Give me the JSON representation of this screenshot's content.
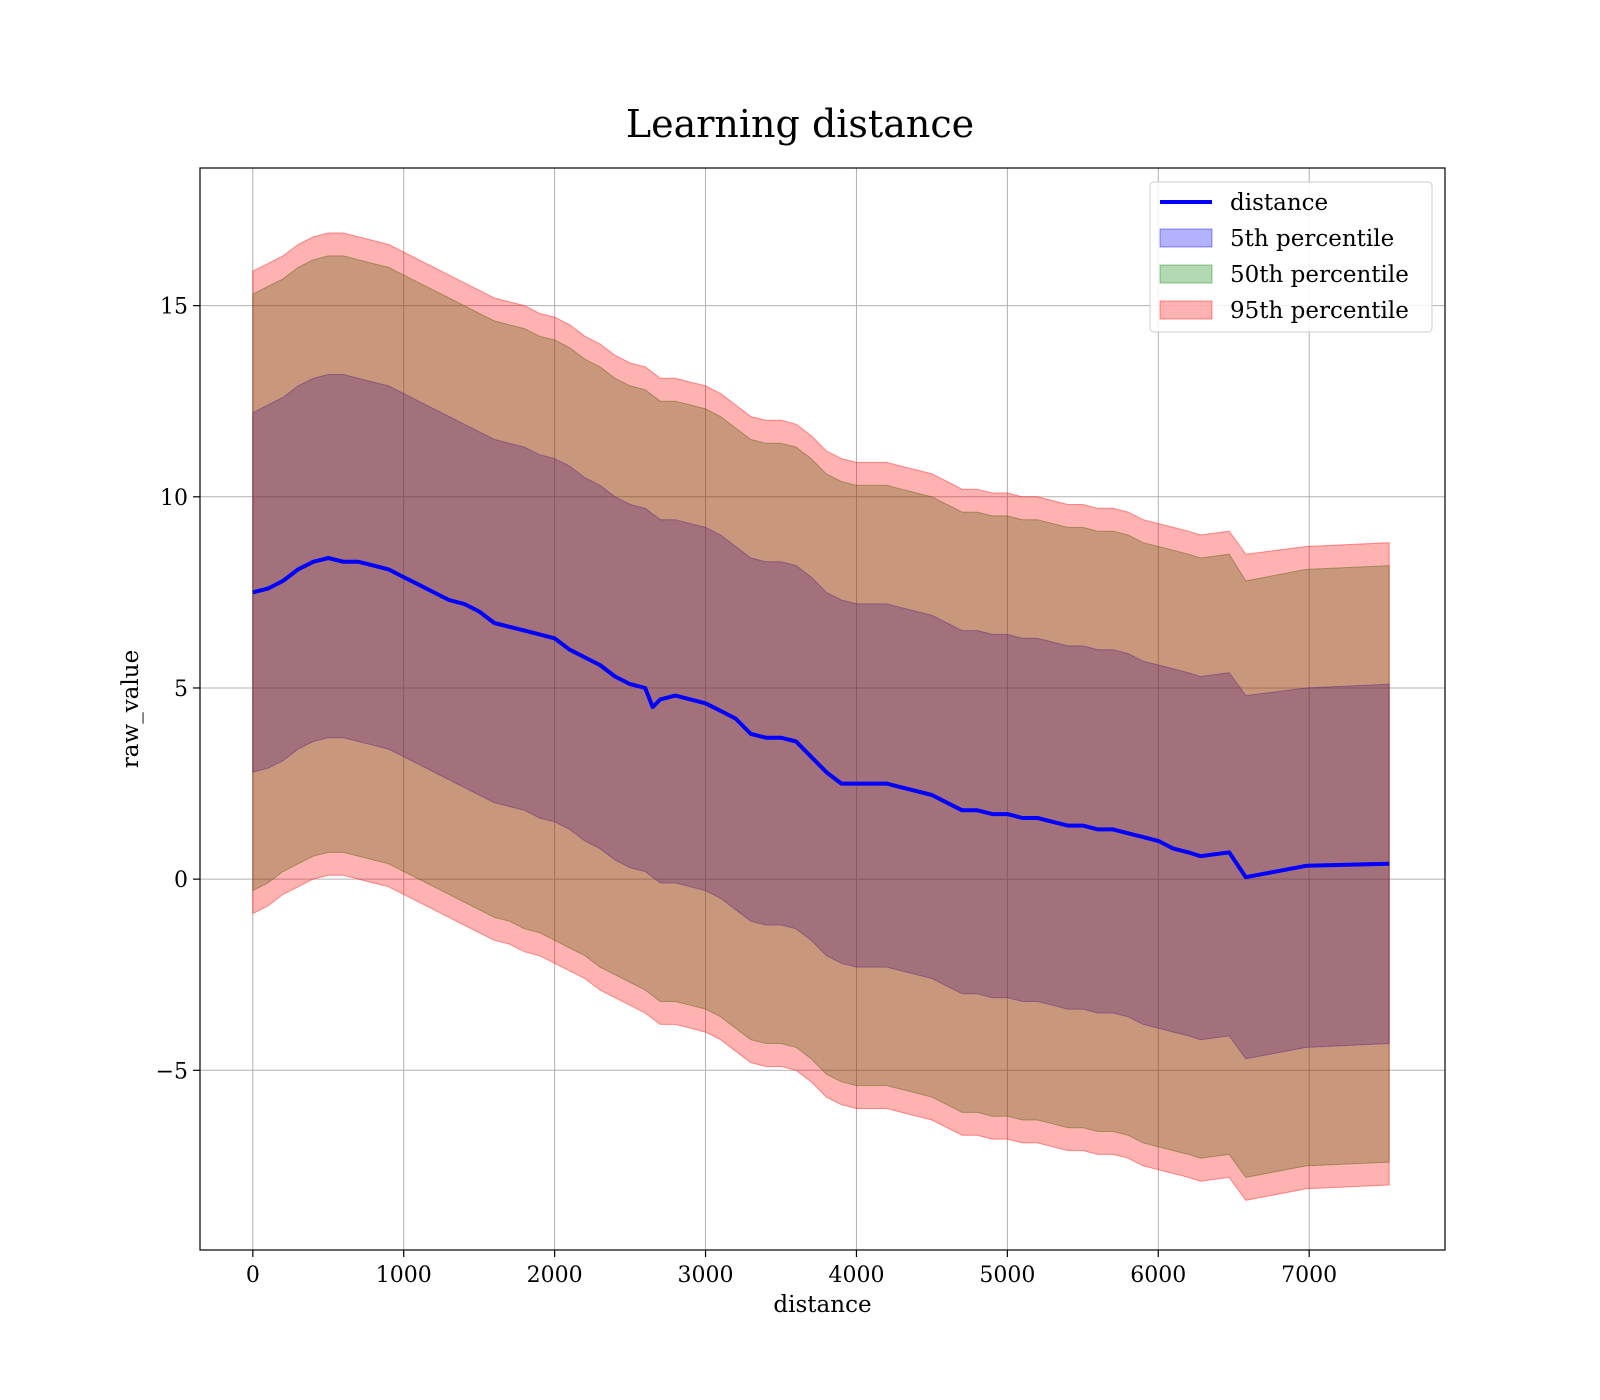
{
  "chart_data": {
    "type": "line",
    "title": "Learning distance",
    "xlabel": "distance",
    "ylabel": "raw_value",
    "xlim": [
      -350,
      7900
    ],
    "ylim": [
      -9.7,
      18.6
    ],
    "x_ticks": [
      0,
      1000,
      2000,
      3000,
      4000,
      5000,
      6000,
      7000
    ],
    "y_ticks": [
      -5,
      0,
      5,
      10,
      15
    ],
    "y_tick_labels": [
      "−5",
      "0",
      "5",
      "10",
      "15"
    ],
    "grid": true,
    "legend_position": "top-right",
    "line": {
      "name": "distance",
      "color": "#0000ff",
      "x": [
        0,
        100,
        200,
        300,
        400,
        500,
        600,
        700,
        800,
        900,
        1000,
        1100,
        1200,
        1300,
        1400,
        1500,
        1600,
        1700,
        1800,
        1900,
        2000,
        2100,
        2200,
        2300,
        2400,
        2500,
        2600,
        2650,
        2700,
        2800,
        2900,
        3000,
        3100,
        3200,
        3300,
        3400,
        3500,
        3600,
        3700,
        3800,
        3900,
        4000,
        4100,
        4200,
        4300,
        4400,
        4500,
        4600,
        4700,
        4800,
        4900,
        5000,
        5100,
        5200,
        5300,
        5400,
        5500,
        5600,
        5700,
        5800,
        5900,
        6000,
        6100,
        6200,
        6280,
        6470,
        6580,
        6980,
        7530
      ],
      "values": [
        7.5,
        7.6,
        7.8,
        8.1,
        8.3,
        8.4,
        8.3,
        8.3,
        8.2,
        8.1,
        7.9,
        7.7,
        7.5,
        7.3,
        7.2,
        7.0,
        6.7,
        6.6,
        6.5,
        6.4,
        6.3,
        6.0,
        5.8,
        5.6,
        5.3,
        5.1,
        5.0,
        4.5,
        4.7,
        4.8,
        4.7,
        4.6,
        4.4,
        4.2,
        3.8,
        3.7,
        3.7,
        3.6,
        3.2,
        2.8,
        2.5,
        2.5,
        2.5,
        2.5,
        2.4,
        2.3,
        2.2,
        2.0,
        1.8,
        1.8,
        1.7,
        1.7,
        1.6,
        1.6,
        1.5,
        1.4,
        1.4,
        1.3,
        1.3,
        1.2,
        1.1,
        1.0,
        0.8,
        0.7,
        0.6,
        0.7,
        0.05,
        0.35,
        0.4
      ]
    },
    "bands_x": [
      0,
      100,
      200,
      300,
      400,
      500,
      600,
      700,
      800,
      900,
      1000,
      1100,
      1200,
      1300,
      1400,
      1500,
      1600,
      1700,
      1800,
      1900,
      2000,
      2100,
      2200,
      2300,
      2400,
      2500,
      2600,
      2700,
      2800,
      2900,
      3000,
      3100,
      3200,
      3300,
      3400,
      3500,
      3600,
      3700,
      3800,
      3900,
      4000,
      4100,
      4200,
      4300,
      4400,
      4500,
      4600,
      4700,
      4800,
      4900,
      5000,
      5100,
      5200,
      5300,
      5400,
      5500,
      5600,
      5700,
      5800,
      5900,
      6000,
      6100,
      6200,
      6280,
      6470,
      6580,
      6980,
      7530
    ],
    "bands": [
      {
        "name": "5th percentile",
        "color": "#0000ff",
        "lower": [
          2.8,
          2.9,
          3.1,
          3.4,
          3.6,
          3.7,
          3.7,
          3.6,
          3.5,
          3.4,
          3.2,
          3.0,
          2.8,
          2.6,
          2.4,
          2.2,
          2.0,
          1.9,
          1.8,
          1.6,
          1.5,
          1.3,
          1.0,
          0.8,
          0.5,
          0.3,
          0.2,
          -0.1,
          -0.1,
          -0.2,
          -0.3,
          -0.5,
          -0.8,
          -1.1,
          -1.2,
          -1.2,
          -1.3,
          -1.6,
          -2.0,
          -2.2,
          -2.3,
          -2.3,
          -2.3,
          -2.4,
          -2.5,
          -2.6,
          -2.8,
          -3.0,
          -3.0,
          -3.1,
          -3.1,
          -3.2,
          -3.2,
          -3.3,
          -3.4,
          -3.4,
          -3.5,
          -3.5,
          -3.6,
          -3.8,
          -3.9,
          -4.0,
          -4.1,
          -4.2,
          -4.1,
          -4.7,
          -4.4,
          -4.3
        ],
        "upper": [
          12.2,
          12.4,
          12.6,
          12.9,
          13.1,
          13.2,
          13.2,
          13.1,
          13.0,
          12.9,
          12.7,
          12.5,
          12.3,
          12.1,
          11.9,
          11.7,
          11.5,
          11.4,
          11.3,
          11.1,
          11.0,
          10.8,
          10.5,
          10.3,
          10.0,
          9.8,
          9.7,
          9.4,
          9.4,
          9.3,
          9.2,
          9.0,
          8.7,
          8.4,
          8.3,
          8.3,
          8.2,
          7.9,
          7.5,
          7.3,
          7.2,
          7.2,
          7.2,
          7.1,
          7.0,
          6.9,
          6.7,
          6.5,
          6.5,
          6.4,
          6.4,
          6.3,
          6.3,
          6.2,
          6.1,
          6.1,
          6.0,
          6.0,
          5.9,
          5.7,
          5.6,
          5.5,
          5.4,
          5.3,
          5.4,
          4.8,
          5.0,
          5.1
        ]
      },
      {
        "name": "50th percentile",
        "color": "#008000",
        "lower": [
          -0.3,
          -0.1,
          0.2,
          0.4,
          0.6,
          0.7,
          0.7,
          0.6,
          0.5,
          0.4,
          0.2,
          0.0,
          -0.2,
          -0.4,
          -0.6,
          -0.8,
          -1.0,
          -1.1,
          -1.3,
          -1.4,
          -1.6,
          -1.8,
          -2.0,
          -2.3,
          -2.5,
          -2.7,
          -2.9,
          -3.2,
          -3.2,
          -3.3,
          -3.4,
          -3.6,
          -3.9,
          -4.2,
          -4.3,
          -4.3,
          -4.4,
          -4.7,
          -5.1,
          -5.3,
          -5.4,
          -5.4,
          -5.4,
          -5.5,
          -5.6,
          -5.7,
          -5.9,
          -6.1,
          -6.1,
          -6.2,
          -6.2,
          -6.3,
          -6.3,
          -6.4,
          -6.5,
          -6.5,
          -6.6,
          -6.6,
          -6.7,
          -6.9,
          -7.0,
          -7.1,
          -7.2,
          -7.3,
          -7.2,
          -7.8,
          -7.5,
          -7.4
        ],
        "upper": [
          15.3,
          15.5,
          15.7,
          16.0,
          16.2,
          16.3,
          16.3,
          16.2,
          16.1,
          16.0,
          15.8,
          15.6,
          15.4,
          15.2,
          15.0,
          14.8,
          14.6,
          14.5,
          14.4,
          14.2,
          14.1,
          13.9,
          13.6,
          13.4,
          13.1,
          12.9,
          12.8,
          12.5,
          12.5,
          12.4,
          12.3,
          12.1,
          11.8,
          11.5,
          11.4,
          11.4,
          11.3,
          11.0,
          10.6,
          10.4,
          10.3,
          10.3,
          10.3,
          10.2,
          10.1,
          10.0,
          9.8,
          9.6,
          9.6,
          9.5,
          9.5,
          9.4,
          9.4,
          9.3,
          9.2,
          9.2,
          9.1,
          9.1,
          9.0,
          8.8,
          8.7,
          8.6,
          8.5,
          8.4,
          8.5,
          7.8,
          8.1,
          8.2
        ]
      },
      {
        "name": "95th percentile",
        "color": "#ff0000",
        "lower": [
          -0.9,
          -0.7,
          -0.4,
          -0.2,
          0.0,
          0.1,
          0.1,
          0.0,
          -0.1,
          -0.2,
          -0.4,
          -0.6,
          -0.8,
          -1.0,
          -1.2,
          -1.4,
          -1.6,
          -1.7,
          -1.9,
          -2.0,
          -2.2,
          -2.4,
          -2.6,
          -2.9,
          -3.1,
          -3.3,
          -3.5,
          -3.8,
          -3.8,
          -3.9,
          -4.0,
          -4.2,
          -4.5,
          -4.8,
          -4.9,
          -4.9,
          -5.0,
          -5.3,
          -5.7,
          -5.9,
          -6.0,
          -6.0,
          -6.0,
          -6.1,
          -6.2,
          -6.3,
          -6.5,
          -6.7,
          -6.7,
          -6.8,
          -6.8,
          -6.9,
          -6.9,
          -7.0,
          -7.1,
          -7.1,
          -7.2,
          -7.2,
          -7.3,
          -7.5,
          -7.6,
          -7.7,
          -7.8,
          -7.9,
          -7.8,
          -8.4,
          -8.1,
          -8.0
        ],
        "upper": [
          15.9,
          16.1,
          16.3,
          16.6,
          16.8,
          16.9,
          16.9,
          16.8,
          16.7,
          16.6,
          16.4,
          16.2,
          16.0,
          15.8,
          15.6,
          15.4,
          15.2,
          15.1,
          15.0,
          14.8,
          14.7,
          14.5,
          14.2,
          14.0,
          13.7,
          13.5,
          13.4,
          13.1,
          13.1,
          13.0,
          12.9,
          12.7,
          12.4,
          12.1,
          12.0,
          12.0,
          11.9,
          11.6,
          11.2,
          11.0,
          10.9,
          10.9,
          10.9,
          10.8,
          10.7,
          10.6,
          10.4,
          10.2,
          10.2,
          10.1,
          10.1,
          10.0,
          10.0,
          9.9,
          9.8,
          9.8,
          9.7,
          9.7,
          9.6,
          9.4,
          9.3,
          9.2,
          9.1,
          9.0,
          9.1,
          8.5,
          8.7,
          8.8
        ]
      }
    ]
  }
}
